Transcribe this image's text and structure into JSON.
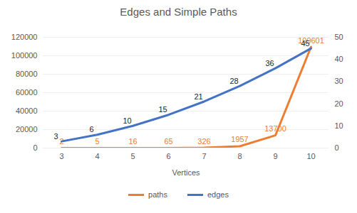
{
  "chart_data": {
    "type": "line",
    "title": "Edges and Simple Paths",
    "x_label": "Vertices",
    "categories": [
      3,
      4,
      5,
      6,
      7,
      8,
      9,
      10
    ],
    "series": [
      {
        "name": "paths",
        "color": "#ed7d31",
        "values": [
          2,
          5,
          16,
          65,
          326,
          1957,
          13700,
          109601
        ]
      },
      {
        "name": "edges",
        "color": "#4472c4",
        "values": [
          3,
          6,
          10,
          15,
          21,
          28,
          36,
          45
        ],
        "axis": "y2"
      }
    ],
    "ylim": [
      0,
      120000
    ],
    "yticks": [
      0,
      20000,
      40000,
      60000,
      80000,
      100000,
      120000
    ],
    "y2lim": [
      0,
      50
    ],
    "y2ticks": [
      0,
      10,
      20,
      30,
      40,
      50
    ],
    "grid": true,
    "legend": "bottom",
    "data_labels": true
  }
}
